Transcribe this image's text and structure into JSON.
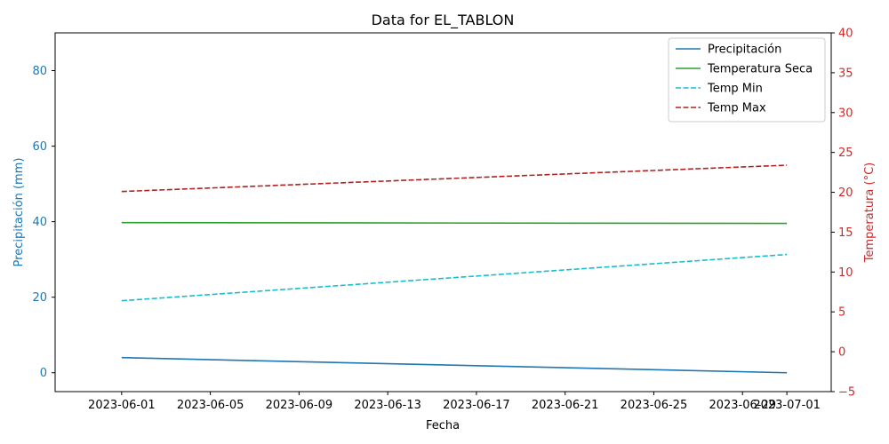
{
  "chart_data": {
    "type": "line",
    "title": "Data for EL_TABLON",
    "xlabel": "Fecha",
    "ylabel_left": "Precipitación (mm)",
    "ylabel_right": "Temperatura (°C)",
    "x_ticks": [
      "2023-06-01",
      "2023-06-05",
      "2023-06-09",
      "2023-06-13",
      "2023-06-17",
      "2023-06-21",
      "2023-06-25",
      "2023-06-29",
      "2023-07-01"
    ],
    "xlim": [
      "2023-05-29",
      "2023-07-03"
    ],
    "y_left_ticks": [
      0,
      20,
      40,
      60,
      80
    ],
    "y_left_lim": [
      -5,
      90
    ],
    "y_right_ticks": [
      -5,
      0,
      5,
      10,
      15,
      20,
      25,
      30,
      35,
      40
    ],
    "y_right_lim": [
      -5,
      40
    ],
    "legend_position": "top-right",
    "grid": false,
    "colors": {
      "left_axis": "#1f77b4",
      "right_axis": "#d62728"
    },
    "series": [
      {
        "name": "Precipitación",
        "axis": "left",
        "style": "solid",
        "color": "#1f77b4",
        "x": [
          "2023-06-01",
          "2023-07-01"
        ],
        "values": [
          4.0,
          0.0
        ]
      },
      {
        "name": "Temperatura Seca",
        "axis": "right",
        "style": "solid",
        "color": "#2ca02c",
        "x": [
          "2023-06-01",
          "2023-07-01"
        ],
        "values": [
          16.2,
          16.1
        ]
      },
      {
        "name": "Temp Min",
        "axis": "right",
        "style": "dashed",
        "color": "#17becf",
        "x": [
          "2023-06-01",
          "2023-07-01"
        ],
        "values": [
          6.4,
          12.2
        ]
      },
      {
        "name": "Temp Max",
        "axis": "right",
        "style": "dashed",
        "color": "#b22222",
        "x": [
          "2023-06-01",
          "2023-07-01"
        ],
        "values": [
          20.1,
          23.4
        ]
      }
    ]
  }
}
